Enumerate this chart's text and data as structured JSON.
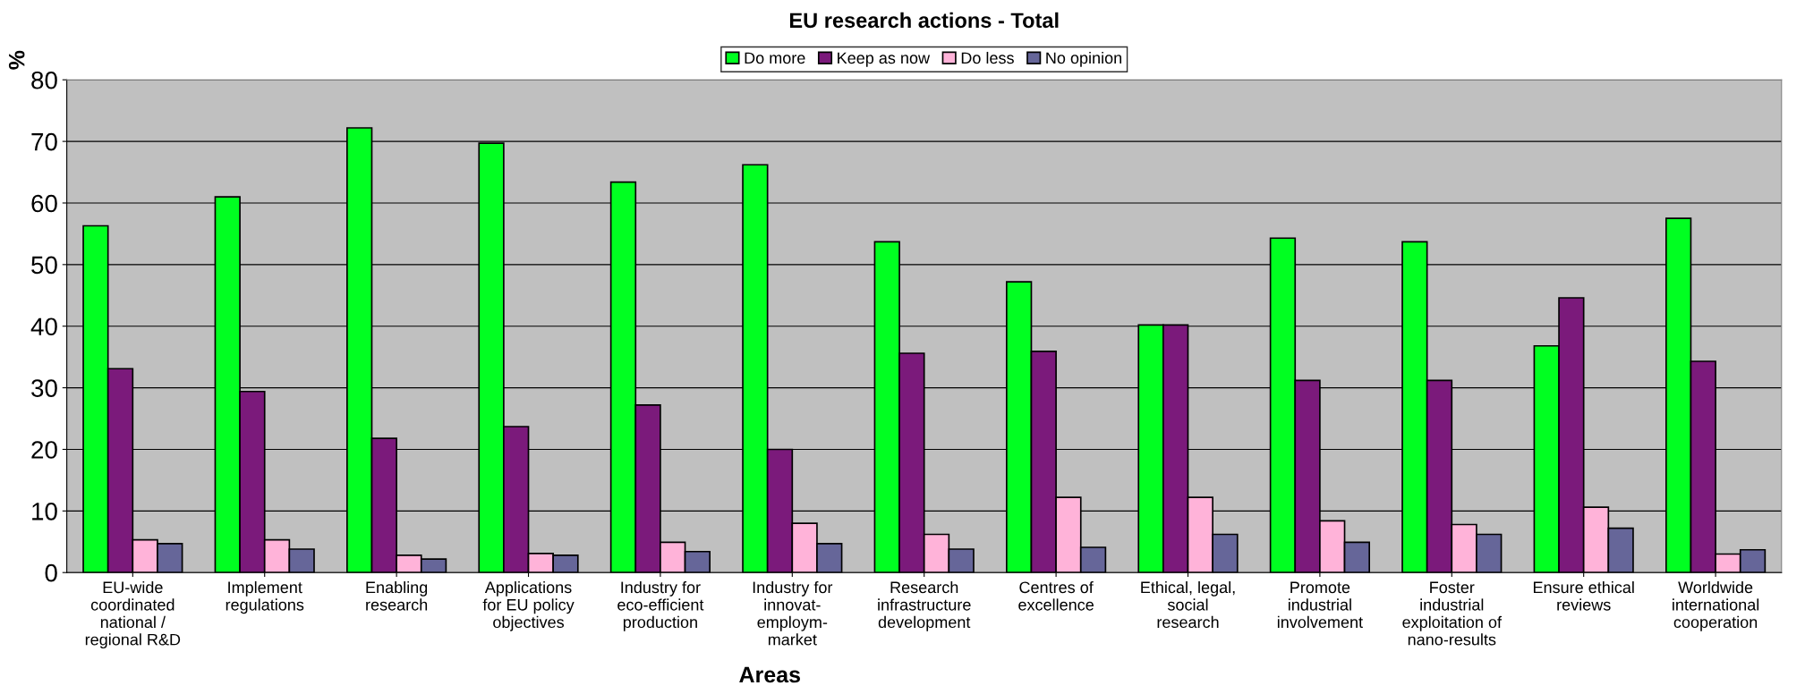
{
  "chart_data": {
    "type": "bar",
    "title": "EU research actions - Total",
    "xlabel": "Areas",
    "ylabel": "%",
    "categories": [
      "EU-wide\ncoordinated\nnational /\nregional R&D",
      "Implement\nregulations",
      "Enabling\nresearch",
      "Applications\nfor EU policy\nobjectives",
      "Industry for\neco-efficient\nproduction",
      "Industry for\ninnovat-\nemploym-\nmarket",
      "Research\ninfrastructure\ndevelopment",
      "Centres of\nexcellence",
      "Ethical, legal,\nsocial\nresearch",
      "Promote\nindustrial\ninvolvement",
      "Foster\nindustrial\nexploitation of\nnano-results",
      "Ensure ethical\nreviews",
      "Worldwide\ninternational\ncooperation"
    ],
    "series": [
      {
        "name": "Do more",
        "color": "#00ff21",
        "values": [
          56.3,
          61,
          72.2,
          69.7,
          63.4,
          66.2,
          53.7,
          47.2,
          40.2,
          54.3,
          53.7,
          36.8,
          57.5
        ]
      },
      {
        "name": "Keep as now",
        "color": "#7b1a7b",
        "values": [
          33.1,
          29.4,
          21.8,
          23.7,
          27.2,
          20,
          35.6,
          35.9,
          40.2,
          31.2,
          31.2,
          44.6,
          34.3
        ]
      },
      {
        "name": "Do less",
        "color": "#ffb3d9",
        "values": [
          5.3,
          5.3,
          2.8,
          3.1,
          4.9,
          8,
          6.2,
          12.2,
          12.2,
          8.4,
          7.8,
          10.6,
          3
        ]
      },
      {
        "name": "No opinion",
        "color": "#666699",
        "values": [
          4.7,
          3.8,
          2.2,
          2.8,
          3.4,
          4.7,
          3.8,
          4.1,
          6.2,
          4.9,
          6.2,
          7.2,
          3.7
        ]
      }
    ],
    "ylim": [
      0,
      80
    ],
    "yticks": [
      0,
      10,
      20,
      30,
      40,
      50,
      60,
      70,
      80
    ],
    "grid": "y",
    "legend": "top"
  }
}
